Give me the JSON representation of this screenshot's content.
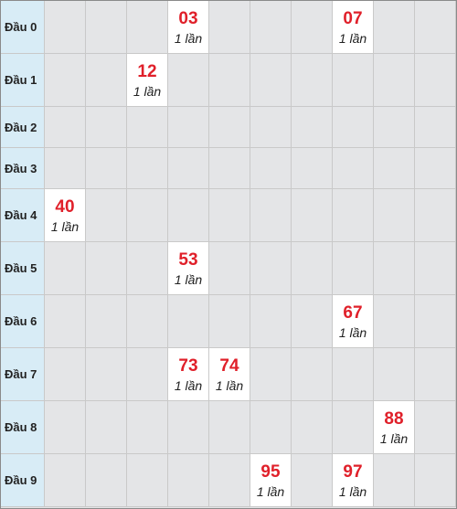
{
  "table": {
    "rows": [
      {
        "label": "Đầu 0",
        "cells": [
          null,
          null,
          null,
          {
            "number": "03",
            "count": "1 lần"
          },
          null,
          null,
          null,
          {
            "number": "07",
            "count": "1 lần"
          },
          null,
          null
        ]
      },
      {
        "label": "Đầu 1",
        "cells": [
          null,
          null,
          {
            "number": "12",
            "count": "1 lần"
          },
          null,
          null,
          null,
          null,
          null,
          null,
          null
        ]
      },
      {
        "label": "Đầu 2",
        "cells": [
          null,
          null,
          null,
          null,
          null,
          null,
          null,
          null,
          null,
          null
        ]
      },
      {
        "label": "Đầu 3",
        "cells": [
          null,
          null,
          null,
          null,
          null,
          null,
          null,
          null,
          null,
          null
        ]
      },
      {
        "label": "Đầu 4",
        "cells": [
          {
            "number": "40",
            "count": "1 lần"
          },
          null,
          null,
          null,
          null,
          null,
          null,
          null,
          null,
          null
        ]
      },
      {
        "label": "Đầu 5",
        "cells": [
          null,
          null,
          null,
          {
            "number": "53",
            "count": "1 lần"
          },
          null,
          null,
          null,
          null,
          null,
          null
        ]
      },
      {
        "label": "Đầu 6",
        "cells": [
          null,
          null,
          null,
          null,
          null,
          null,
          null,
          {
            "number": "67",
            "count": "1 lần"
          },
          null,
          null
        ]
      },
      {
        "label": "Đầu 7",
        "cells": [
          null,
          null,
          null,
          {
            "number": "73",
            "count": "1 lần"
          },
          {
            "number": "74",
            "count": "1 lần"
          },
          null,
          null,
          null,
          null,
          null
        ]
      },
      {
        "label": "Đầu 8",
        "cells": [
          null,
          null,
          null,
          null,
          null,
          null,
          null,
          null,
          {
            "number": "88",
            "count": "1 lần"
          },
          null
        ]
      },
      {
        "label": "Đầu 9",
        "cells": [
          null,
          null,
          null,
          null,
          null,
          {
            "number": "95",
            "count": "1 lần"
          },
          null,
          {
            "number": "97",
            "count": "1 lần"
          },
          null,
          null
        ]
      }
    ]
  }
}
